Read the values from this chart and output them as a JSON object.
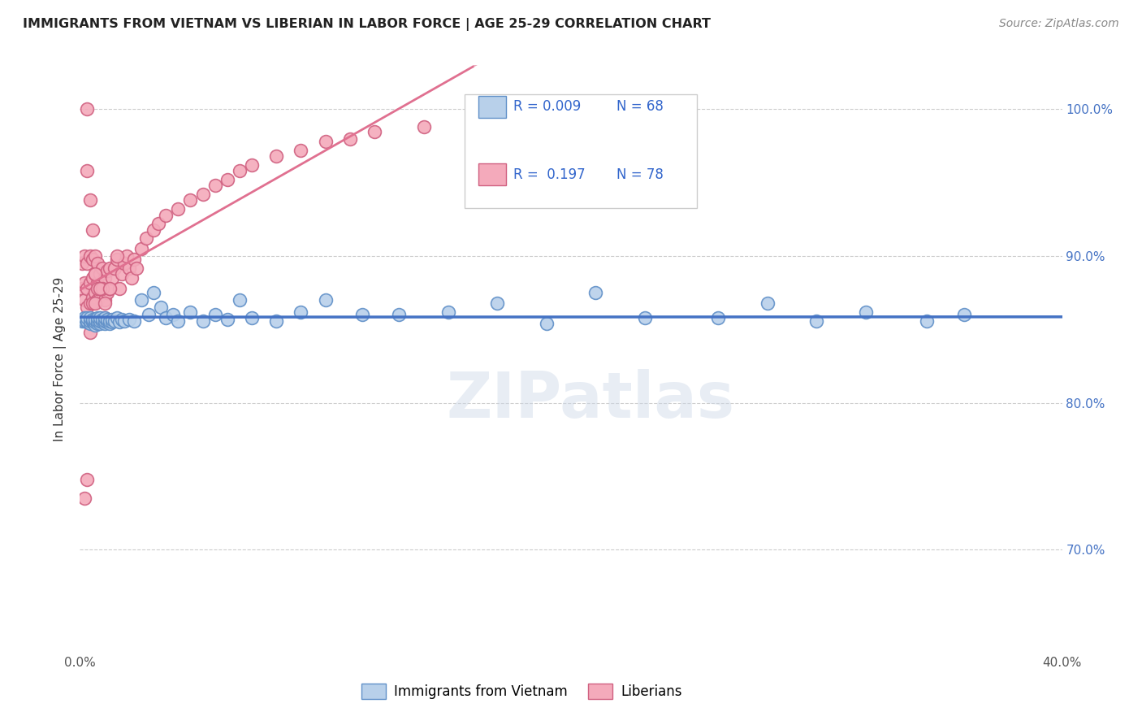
{
  "title": "IMMIGRANTS FROM VIETNAM VS LIBERIAN IN LABOR FORCE | AGE 25-29 CORRELATION CHART",
  "source": "Source: ZipAtlas.com",
  "ylabel": "In Labor Force | Age 25-29",
  "xlim": [
    0.0,
    0.4
  ],
  "ylim": [
    0.63,
    1.03
  ],
  "xticks": [
    0.0,
    0.05,
    0.1,
    0.15,
    0.2,
    0.25,
    0.3,
    0.35,
    0.4
  ],
  "xticklabels": [
    "0.0%",
    "",
    "",
    "",
    "",
    "",
    "",
    "",
    "40.0%"
  ],
  "yticks": [
    0.7,
    0.8,
    0.9,
    1.0
  ],
  "yticklabels": [
    "70.0%",
    "80.0%",
    "90.0%",
    "100.0%"
  ],
  "color_vietnam": "#b8d0ea",
  "color_liberia": "#f4aabb",
  "edge_color_vietnam": "#6090c8",
  "edge_color_liberia": "#d06080",
  "line_color_vietnam": "#4472c4",
  "line_color_liberia": "#e07090",
  "background_color": "#ffffff",
  "grid_color": "#cccccc",
  "title_color": "#222222",
  "legend_text_color": "#3366cc",
  "watermark": "ZIPatlas",
  "vietnam_x": [
    0.001,
    0.002,
    0.002,
    0.003,
    0.003,
    0.003,
    0.004,
    0.004,
    0.004,
    0.005,
    0.005,
    0.005,
    0.006,
    0.006,
    0.006,
    0.007,
    0.007,
    0.007,
    0.008,
    0.008,
    0.008,
    0.009,
    0.009,
    0.01,
    0.01,
    0.01,
    0.011,
    0.011,
    0.012,
    0.012,
    0.013,
    0.013,
    0.014,
    0.015,
    0.016,
    0.017,
    0.018,
    0.02,
    0.022,
    0.025,
    0.028,
    0.03,
    0.033,
    0.035,
    0.038,
    0.04,
    0.045,
    0.05,
    0.055,
    0.06,
    0.065,
    0.07,
    0.08,
    0.09,
    0.1,
    0.115,
    0.13,
    0.15,
    0.17,
    0.19,
    0.21,
    0.23,
    0.26,
    0.28,
    0.3,
    0.32,
    0.345,
    0.36
  ],
  "vietnam_y": [
    0.856,
    0.856,
    0.858,
    0.855,
    0.856,
    0.858,
    0.854,
    0.856,
    0.858,
    0.855,
    0.856,
    0.857,
    0.853,
    0.855,
    0.857,
    0.854,
    0.856,
    0.858,
    0.854,
    0.856,
    0.858,
    0.855,
    0.857,
    0.854,
    0.856,
    0.858,
    0.855,
    0.857,
    0.854,
    0.856,
    0.855,
    0.857,
    0.856,
    0.858,
    0.855,
    0.857,
    0.856,
    0.857,
    0.856,
    0.87,
    0.86,
    0.875,
    0.865,
    0.858,
    0.86,
    0.856,
    0.862,
    0.856,
    0.86,
    0.857,
    0.87,
    0.858,
    0.856,
    0.862,
    0.87,
    0.86,
    0.86,
    0.862,
    0.868,
    0.854,
    0.875,
    0.858,
    0.858,
    0.868,
    0.856,
    0.862,
    0.856,
    0.86
  ],
  "liberia_x": [
    0.001,
    0.001,
    0.002,
    0.002,
    0.002,
    0.003,
    0.003,
    0.003,
    0.004,
    0.004,
    0.004,
    0.005,
    0.005,
    0.005,
    0.006,
    0.006,
    0.006,
    0.007,
    0.007,
    0.007,
    0.008,
    0.008,
    0.009,
    0.009,
    0.01,
    0.01,
    0.011,
    0.011,
    0.012,
    0.012,
    0.013,
    0.014,
    0.015,
    0.016,
    0.017,
    0.018,
    0.019,
    0.02,
    0.021,
    0.022,
    0.023,
    0.025,
    0.027,
    0.03,
    0.032,
    0.035,
    0.04,
    0.045,
    0.05,
    0.055,
    0.06,
    0.065,
    0.07,
    0.08,
    0.09,
    0.1,
    0.11,
    0.12,
    0.14,
    0.16,
    0.008,
    0.005,
    0.007,
    0.003,
    0.004,
    0.006,
    0.009,
    0.002,
    0.01,
    0.003,
    0.004,
    0.005,
    0.006,
    0.008,
    0.01,
    0.012,
    0.015,
    0.003
  ],
  "liberia_y": [
    0.878,
    0.895,
    0.87,
    0.882,
    0.9,
    0.865,
    0.878,
    0.895,
    0.868,
    0.882,
    0.9,
    0.872,
    0.885,
    0.898,
    0.875,
    0.888,
    0.9,
    0.87,
    0.882,
    0.895,
    0.875,
    0.888,
    0.878,
    0.892,
    0.87,
    0.885,
    0.875,
    0.89,
    0.878,
    0.892,
    0.885,
    0.892,
    0.898,
    0.878,
    0.888,
    0.895,
    0.9,
    0.892,
    0.885,
    0.898,
    0.892,
    0.905,
    0.912,
    0.918,
    0.922,
    0.928,
    0.932,
    0.938,
    0.942,
    0.948,
    0.952,
    0.958,
    0.962,
    0.968,
    0.972,
    0.978,
    0.98,
    0.985,
    0.988,
    0.992,
    0.858,
    0.868,
    0.878,
    0.958,
    0.848,
    0.868,
    0.878,
    0.735,
    0.858,
    0.748,
    0.938,
    0.918,
    0.888,
    0.878,
    0.868,
    0.878,
    0.9,
    1.0
  ]
}
